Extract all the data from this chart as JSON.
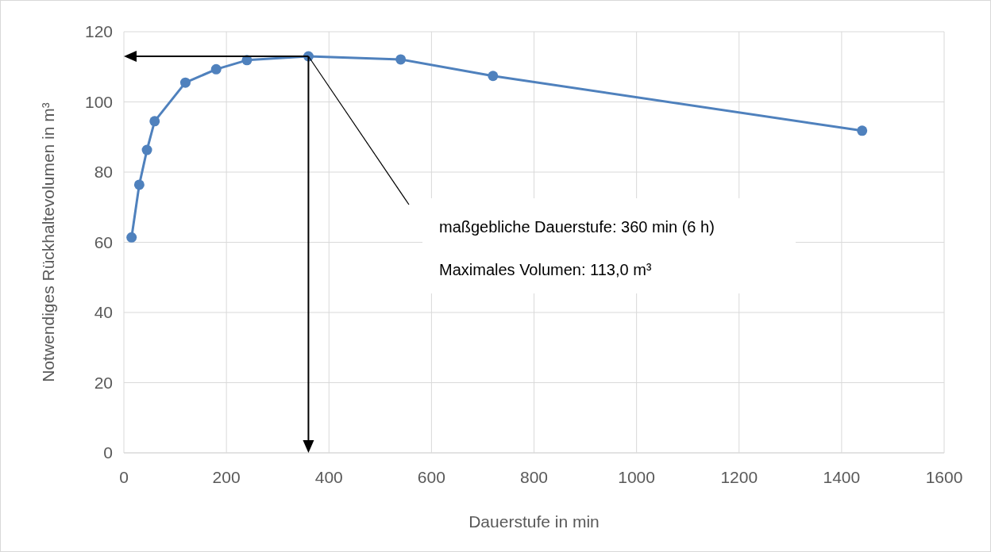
{
  "chart_data": {
    "type": "line",
    "xlabel": "Dauerstufe in min",
    "ylabel": "Notwendiges Rückhaltevolumen in m³",
    "x": [
      15,
      30,
      45,
      60,
      120,
      180,
      240,
      360,
      540,
      720,
      1440
    ],
    "series": [
      {
        "color": "#4f81bd",
        "values": [
          61.4,
          76.4,
          86.3,
          94.5,
          105.5,
          109.3,
          111.9,
          113.0,
          112.1,
          107.4,
          91.8
        ]
      }
    ],
    "xlim": [
      0,
      1600
    ],
    "xticks": [
      0,
      200,
      400,
      600,
      800,
      1000,
      1200,
      1400,
      1600
    ],
    "ylim": [
      0,
      120
    ],
    "yticks": [
      0,
      20,
      40,
      60,
      80,
      100,
      120
    ],
    "grid": true,
    "marker": "circle",
    "line_style": "solid",
    "ref_lines": [
      {
        "axis": "x",
        "value": 360,
        "color": "#000000"
      },
      {
        "axis": "y",
        "value": 113.0,
        "color": "#000000"
      }
    ],
    "annotations": [
      "maßgebliche Dauerstufe: 360 min (6 h)",
      "Maximales Volumen: 113,0 m³"
    ]
  }
}
